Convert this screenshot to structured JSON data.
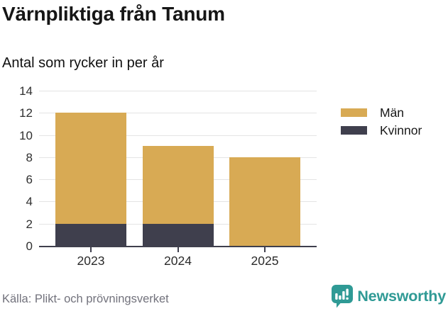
{
  "header": {
    "title": "Värnpliktiga från Tanum",
    "subtitle": "Antal som rycker in per år"
  },
  "chart_data": {
    "type": "bar",
    "stacked": true,
    "title": "Värnpliktiga från Tanum",
    "subtitle": "Antal som rycker in per år",
    "categories": [
      "2023",
      "2024",
      "2025"
    ],
    "series": [
      {
        "name": "Män",
        "color": "#d8aa54",
        "values": [
          10,
          7,
          8
        ]
      },
      {
        "name": "Kvinnor",
        "color": "#3f3f4d",
        "values": [
          2,
          2,
          0
        ]
      }
    ],
    "stack_order_bottom_to_top": [
      "Kvinnor",
      "Män"
    ],
    "totals": [
      12,
      9,
      8
    ],
    "xlabel": "",
    "ylabel": "",
    "ylim": [
      0,
      14
    ],
    "yticks": [
      0,
      2,
      4,
      6,
      8,
      10,
      12,
      14
    ],
    "grid": true,
    "legend_position": "top-right"
  },
  "footer": {
    "source": "Källa: Plikt- och prövningsverket",
    "brand": "Newsworthy"
  },
  "colors": {
    "men": "#d8aa54",
    "women": "#3f3f4d",
    "gridline": "#e4e4e4",
    "axis": "#3f3f4d",
    "brand_teal": "#2f9a95",
    "source_text": "#72727c"
  }
}
